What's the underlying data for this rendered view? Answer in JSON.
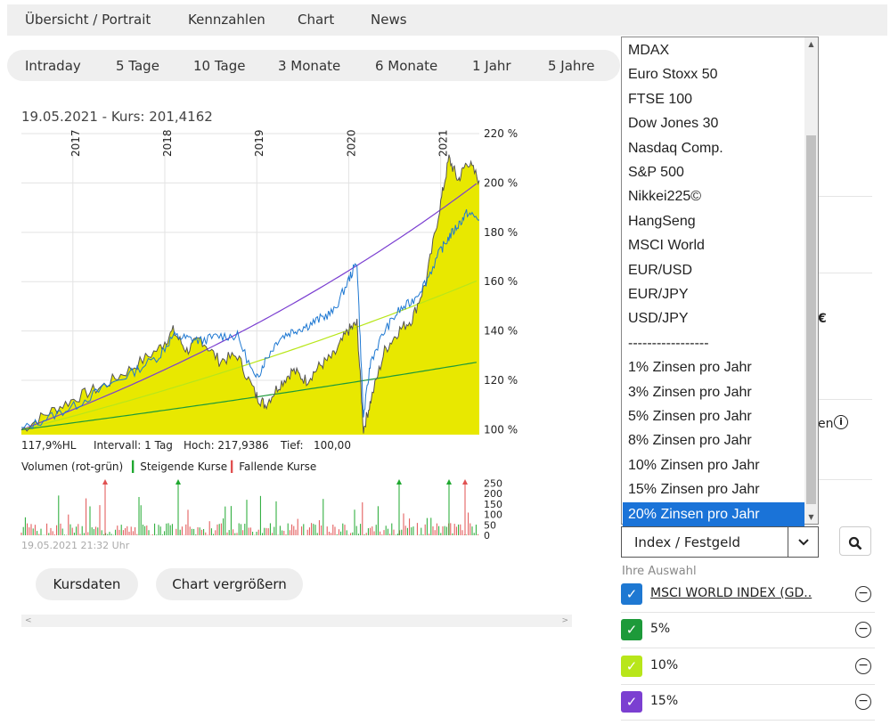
{
  "topnav": [
    "Übersicht / Portrait",
    "Kennzahlen",
    "Chart",
    "News"
  ],
  "tabs": [
    {
      "label": "Intraday",
      "active": false
    },
    {
      "label": "5 Tage",
      "active": false
    },
    {
      "label": "10 Tage",
      "active": false
    },
    {
      "label": "3 Monate",
      "active": false
    },
    {
      "label": "6 Monate",
      "active": false
    },
    {
      "label": "1 Jahr",
      "active": false
    },
    {
      "label": "5 Jahre",
      "active": true
    }
  ],
  "kurs_line": "19.05.2021  -  Kurs: 201,4162",
  "chart_data": {
    "type": "area",
    "years": [
      "2017",
      "2018",
      "2019",
      "2020",
      "2021"
    ],
    "y_ticks": [
      "220 %",
      "200 %",
      "180 %",
      "160 %",
      "140 %",
      "120 %",
      "100 %"
    ],
    "ylim": [
      98,
      220
    ],
    "x_range": [
      2016.4,
      2021.38
    ],
    "series": [
      {
        "color": "#e8e800",
        "fill": true,
        "x": [
          2016.4,
          2016.7,
          2017.0,
          2017.3,
          2017.6,
          2017.9,
          2018.05,
          2018.2,
          2018.35,
          2018.55,
          2018.75,
          2018.95,
          2019.05,
          2019.2,
          2019.35,
          2019.5,
          2019.65,
          2019.8,
          2019.95,
          2020.05,
          2020.12,
          2020.2,
          2020.35,
          2020.5,
          2020.65,
          2020.8,
          2020.95,
          2021.05,
          2021.15,
          2021.25,
          2021.38
        ],
        "y": [
          100,
          107,
          113,
          118,
          125,
          133,
          140,
          132,
          137,
          128,
          130,
          114,
          110,
          118,
          124,
          120,
          126,
          130,
          140,
          143,
          100,
          112,
          132,
          140,
          145,
          160,
          190,
          210,
          201,
          209,
          201
        ]
      },
      {
        "color": "#555555",
        "fill": false,
        "x": [
          2016.4,
          2016.7,
          2017.0,
          2017.3,
          2017.6,
          2017.9,
          2018.05,
          2018.2,
          2018.35,
          2018.55,
          2018.75,
          2018.95,
          2019.05,
          2019.2,
          2019.35,
          2019.5,
          2019.65,
          2019.8,
          2019.95,
          2020.05,
          2020.12,
          2020.2,
          2020.35,
          2020.5,
          2020.65,
          2020.8,
          2020.95,
          2021.05,
          2021.15,
          2021.25,
          2021.38
        ],
        "y": [
          100,
          107,
          113,
          118,
          125,
          133,
          140,
          132,
          137,
          128,
          130,
          114,
          110,
          118,
          124,
          120,
          126,
          130,
          140,
          143,
          100,
          112,
          132,
          140,
          145,
          160,
          190,
          210,
          201,
          209,
          201
        ]
      },
      {
        "color": "#1e78d2",
        "fill": false,
        "x": [
          2016.4,
          2016.7,
          2017.0,
          2017.3,
          2017.6,
          2017.9,
          2018.05,
          2018.2,
          2018.35,
          2018.55,
          2018.75,
          2018.95,
          2019.05,
          2019.2,
          2019.35,
          2019.5,
          2019.65,
          2019.8,
          2019.95,
          2020.05,
          2020.12,
          2020.2,
          2020.35,
          2020.5,
          2020.65,
          2020.8,
          2020.95,
          2021.05,
          2021.15,
          2021.25,
          2021.38
        ],
        "y": [
          100,
          105,
          110,
          117,
          123,
          130,
          138,
          137,
          136,
          138,
          138,
          120,
          128,
          137,
          140,
          142,
          145,
          148,
          160,
          168,
          105,
          128,
          140,
          148,
          152,
          160,
          172,
          178,
          183,
          188,
          185
        ]
      },
      {
        "color": "#7b3fd1",
        "fill": false,
        "rate": 0.15,
        "label": "15%"
      },
      {
        "color": "#b8e61a",
        "fill": false,
        "rate": 0.1,
        "label": "10%"
      },
      {
        "color": "#1d9a3a",
        "fill": false,
        "rate": 0.05,
        "label": "5%"
      }
    ],
    "volume": {
      "ticks": [
        "250",
        "200",
        "150",
        "100",
        "50",
        "0"
      ],
      "ymax": 260
    }
  },
  "info": {
    "hl": "117,9%HL",
    "intervall": "Intervall: 1 Tag",
    "hoch": "Hoch: 217,9386",
    "tief": "Tief:   100,00"
  },
  "vol_legend": {
    "title": "Volumen (rot-grün)",
    "up": "Steigende Kurse",
    "down": "Fallende Kurse"
  },
  "timestamp": "19.05.2021 21:32 Uhr",
  "buttons": {
    "kursdaten": "Kursdaten",
    "vergroessern": "Chart vergrößern"
  },
  "dropdown": {
    "items": [
      "MDAX",
      "Euro Stoxx 50",
      "FTSE 100",
      "Dow Jones 30",
      "Nasdaq Comp.",
      "S&P 500",
      "Nikkei225©",
      "HangSeng",
      "MSCI World",
      "EUR/USD",
      "EUR/JPY",
      "USD/JPY",
      "-----------------",
      "1% Zinsen pro Jahr",
      "3% Zinsen pro Jahr",
      "5% Zinsen pro Jahr",
      "8% Zinsen pro Jahr",
      "10% Zinsen pro Jahr",
      "15% Zinsen pro Jahr",
      "20% Zinsen pro Jahr"
    ],
    "selected_index": 19
  },
  "select": {
    "value": "Index / Festgeld"
  },
  "selection": {
    "title": "Ihre Auswahl",
    "items": [
      {
        "label": "MSCI WORLD INDEX (GD..",
        "color": "#1e78d2",
        "link": true
      },
      {
        "label": "5%",
        "color": "#1d9a3a",
        "link": false
      },
      {
        "label": "10%",
        "color": "#b8e61a",
        "link": false
      },
      {
        "label": "15%",
        "color": "#7b3fd1",
        "link": false
      }
    ]
  },
  "right_partial": {
    "a": "€",
    "b": "en"
  }
}
